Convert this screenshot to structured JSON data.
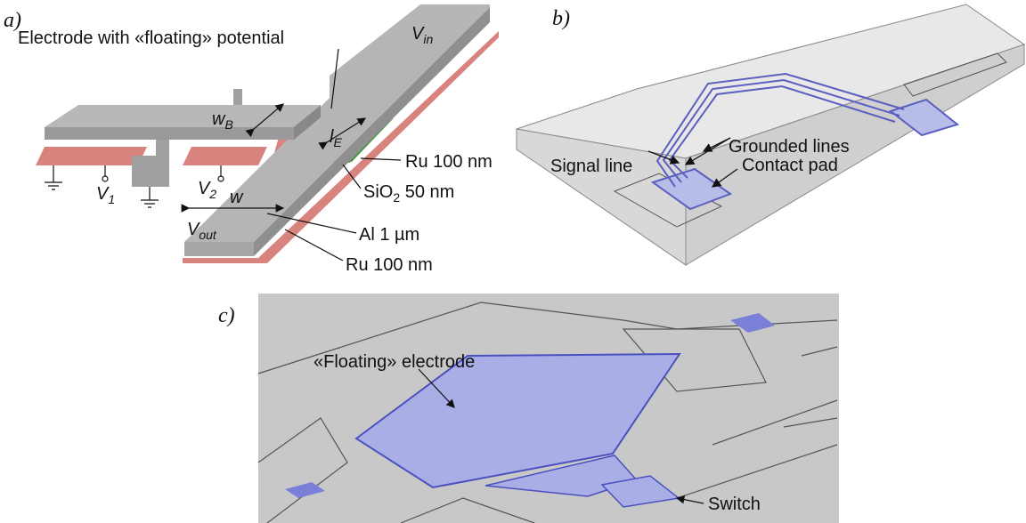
{
  "panel_a": {
    "label": "a)",
    "floating_note": "Electrode with «floating» potential",
    "v_in": {
      "main": "V",
      "sub": "in"
    },
    "w_b": {
      "main": "w",
      "sub": "B"
    },
    "l_e": {
      "main": "l",
      "sub": "E"
    },
    "ru_top": "Ru 100 nm",
    "sio2": {
      "main": "SiO",
      "sub": "2",
      "rest": " 50 nm"
    },
    "v1": {
      "main": "V",
      "sub": "1"
    },
    "v2": {
      "main": "V",
      "sub": "2"
    },
    "w": "w",
    "v_out": {
      "main": "V",
      "sub": "out"
    },
    "al": "Al 1 µm",
    "ru_bottom": "Ru 100 nm"
  },
  "panel_b": {
    "label": "b)",
    "grounded": "Grounded lines",
    "signal": "Signal line",
    "pad": "Contact pad"
  },
  "panel_c": {
    "label": "c)",
    "electrode": "«Floating» electrode",
    "switch": "Switch"
  }
}
